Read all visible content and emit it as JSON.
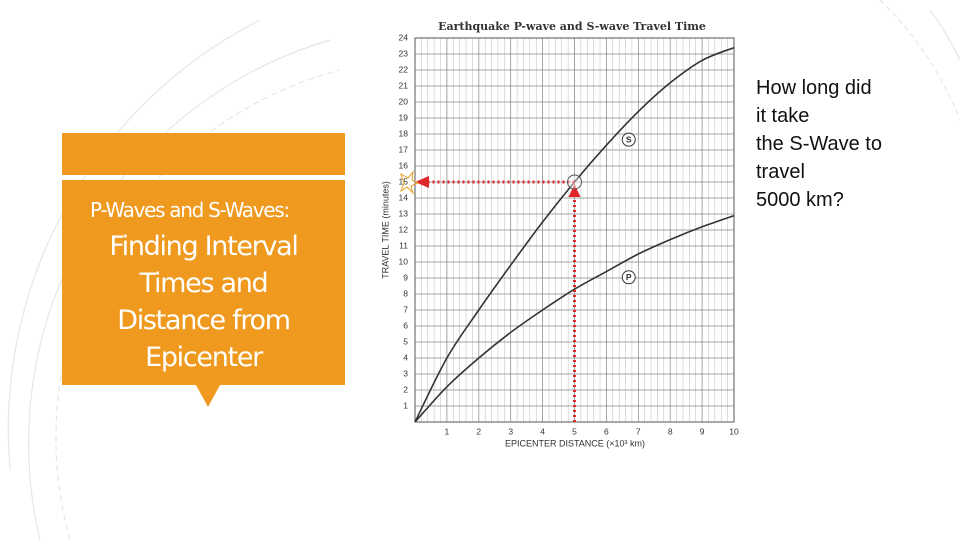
{
  "slide": {
    "box_subtitle": "P-Waves and S-Waves:",
    "box_title": "Finding Interval Times and Distance from Epicenter",
    "question_lines": [
      "How long did",
      "it take",
      "the S-Wave to",
      "travel",
      "5000 km?"
    ]
  },
  "chart_data": {
    "type": "line",
    "title": "Earthquake P-wave and S-wave Travel Time",
    "x_label": "EPICENTER DISTANCE (×10³ km)",
    "y_label": "TRAVEL TIME (minutes)",
    "x": [
      0,
      1,
      2,
      3,
      4,
      5,
      6,
      7,
      8,
      9,
      10
    ],
    "series": [
      {
        "name": "S",
        "color": "#333333",
        "values": [
          0,
          4.0,
          7.0,
          9.8,
          12.5,
          15.0,
          17.3,
          19.4,
          21.2,
          22.6,
          23.4
        ]
      },
      {
        "name": "P",
        "color": "#333333",
        "values": [
          0,
          2.2,
          4.0,
          5.6,
          7.0,
          8.3,
          9.4,
          10.5,
          11.4,
          12.2,
          12.9
        ]
      }
    ],
    "marker": {
      "x": 5,
      "y": 15,
      "color": "#e0262b"
    },
    "xlim": [
      0,
      10
    ],
    "ylim": [
      0,
      24
    ],
    "xticks": [
      1,
      2,
      3,
      4,
      5,
      6,
      7,
      8,
      9,
      10
    ],
    "yticks": [
      1,
      2,
      3,
      4,
      5,
      6,
      7,
      8,
      9,
      10,
      11,
      12,
      13,
      14,
      15,
      16,
      17,
      18,
      19,
      20,
      21,
      22,
      23,
      24
    ],
    "grid": true
  }
}
